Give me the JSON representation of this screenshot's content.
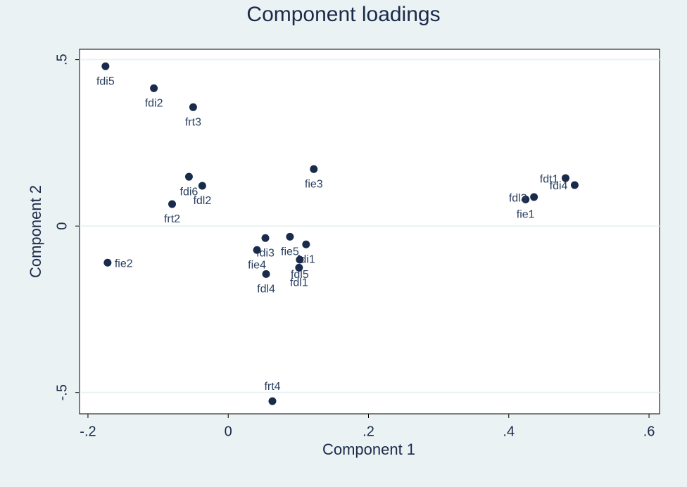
{
  "chart_data": {
    "type": "scatter",
    "title": "Component loadings",
    "x_label": "Component 1",
    "y_label": "Component 2",
    "labels": [
      "fdi5",
      "fdi2",
      "frt3",
      "fie3",
      "fdi6",
      "fdl2",
      "frt2",
      "fie2",
      "fdi3",
      "fie4",
      "fdl4",
      "fie5",
      "fdi1",
      "fdl5",
      "fdl1",
      "frt4",
      "fie1",
      "fdl3",
      "fdt1",
      "fdi4"
    ],
    "x": [
      -0.175,
      -0.106,
      -0.05,
      0.122,
      -0.056,
      -0.037,
      -0.08,
      -0.172,
      0.053,
      0.041,
      0.054,
      0.088,
      0.111,
      0.102,
      0.101,
      0.063,
      0.424,
      0.436,
      0.481,
      0.494
    ],
    "values": [
      0.48,
      0.414,
      0.357,
      0.171,
      0.148,
      0.121,
      0.066,
      -0.11,
      -0.036,
      -0.072,
      -0.144,
      -0.032,
      -0.055,
      -0.101,
      -0.125,
      -0.526,
      0.08,
      0.087,
      0.144,
      0.123
    ],
    "color": "#1a2a4a",
    "xlim": [
      -0.212,
      0.615
    ],
    "ylim": [
      -0.564,
      0.531
    ],
    "xticks": [
      {
        "value": -0.2,
        "label": "-.2"
      },
      0,
      {
        "value": 0.2,
        "label": ".2"
      },
      {
        "value": 0.4,
        "label": ".4"
      },
      {
        "value": 0.6,
        "label": ".6"
      }
    ],
    "yticks": [
      {
        "value": -0.5,
        "label": "-.5"
      },
      0,
      {
        "value": 0.5,
        "label": ".5"
      }
    ],
    "grid": true
  }
}
